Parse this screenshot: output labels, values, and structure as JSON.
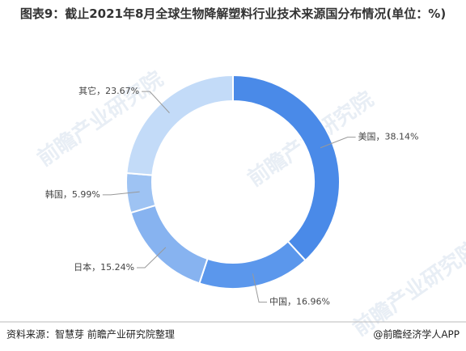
{
  "chart_data": {
    "type": "donut",
    "title": "图表9：截止2021年8月全球生物降解塑料行业技术来源国分布情况(单位：%)",
    "values": [
      38.14,
      16.96,
      15.24,
      5.99,
      23.67
    ],
    "value_labels": [
      "美国，38.14%",
      "中国，16.96%",
      "日本，15.24%",
      "韩国，5.99%",
      "其它，23.67%"
    ],
    "colors": [
      "#4a8ae8",
      "#5b97ec",
      "#87b3f0",
      "#9ec3f3",
      "#c3dbf8"
    ],
    "source": "资料来源：智慧芽 前瞻产业研究院整理",
    "credit": "@前瞻经济学人APP",
    "watermark": "前瞻产业研究院"
  }
}
